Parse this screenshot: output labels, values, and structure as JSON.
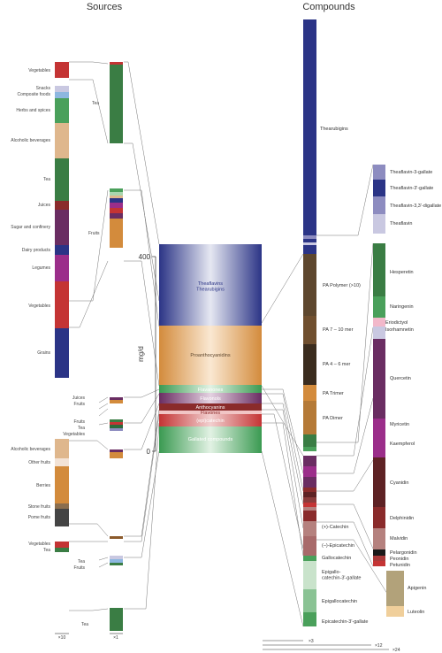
{
  "headings": {
    "sources": "Sources",
    "compounds": "Compounds"
  },
  "axis": {
    "label": "mg/d",
    "ticks": [
      0,
      400
    ]
  },
  "central_bands": [
    "Theaflavins\nThearubigins",
    "Proanthocyanidins",
    "Flavanones",
    "Flavonols",
    "Anthocyanins",
    "Flavones",
    "(epi)catechin",
    "Gallated compounds"
  ],
  "source_labels": [
    "Vegetables",
    "Snacks",
    "Composite foods",
    "Herbs and spices",
    "Alcoholic beverages",
    "Tea",
    "Juices",
    "Sugar and confinery",
    "Dairy products",
    "Legumes",
    "Vegetables",
    "Grains",
    "Tea",
    "Fruits",
    "Juices",
    "Fruits",
    "Fruits",
    "Tea",
    "Vegetables",
    "Alcoholic beverages",
    "Other fruits",
    "Berries",
    "Stone fruits",
    "Pome fruits",
    "Vegetables",
    "Tea",
    "Tea",
    "Fruits",
    "Tea"
  ],
  "compound_labels": [
    "Thearubigins",
    "PA Polymer (>10)",
    "PA 7 – 10 mer",
    "PA 4 – 6 mer",
    "PA Trimer",
    "PA Dimer",
    "(+)-Catechin",
    "(–)-Epicatechin",
    "Gallocatechin",
    "Epigallo-\ncatechin-3'-gallate",
    "Epigallocatechin",
    "Epicatechin-3'-gallate"
  ],
  "right_labels": [
    "Theaflavin-3-gallate",
    "Theaflavin-3'-gallate",
    "Theaflavin-3,3'-digallate",
    "Theaflavin",
    "Hesperetin",
    "Naringenin",
    "Eriodictyol",
    "Isorhamnetin",
    "Quercetin",
    "Myricetin",
    "Kaempferol",
    "Cyanidin",
    "Delphinidin",
    "Malvidin",
    "Pelargonidin",
    "Peonidin",
    "Petunidin",
    "Apigenin",
    "Luteolin"
  ],
  "scale_labels": [
    "×10",
    "×1",
    "×3",
    "×12",
    "×24"
  ],
  "colors": {
    "tea": "#3a7d44",
    "dark_tea": "#2e6b3c",
    "navy": "#2b3486",
    "orange": "#d38b3c",
    "tan": "#dfb78d",
    "red": "#c43434",
    "purple": "#6a2d62",
    "magenta": "#9b2e8a",
    "brown": "#5e472e",
    "dark_brown": "#3b2c1e",
    "lilac": "#8d8cc0",
    "pale_lilac": "#c9c8e1",
    "dark_red": "#5e2224",
    "rose": "#b5817e",
    "green": "#4aa05b",
    "light_green": "#a9d5ae",
    "khaki": "#b2a27a",
    "peach": "#f0cf9b",
    "grey": "#555555"
  }
}
